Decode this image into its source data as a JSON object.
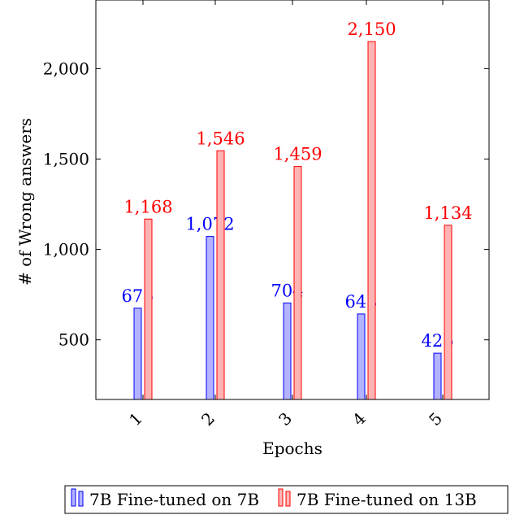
{
  "chart_data": {
    "type": "bar",
    "title": "",
    "xlabel": "Epochs",
    "ylabel": "# of Wrong answers",
    "categories": [
      "1",
      "2",
      "3",
      "4",
      "5"
    ],
    "ylim": [
      170,
      2380
    ],
    "yticks": [
      500,
      1000,
      1500,
      2000
    ],
    "ytick_labels": [
      "500",
      "1,000",
      "1,500",
      "2,000"
    ],
    "grid": false,
    "legend_position": "bottom-center",
    "series": [
      {
        "name": "7B Fine-tuned on 7B",
        "values": [
          675,
          1072,
          704,
          643,
          426
        ],
        "labels": [
          "675",
          "1,072",
          "704",
          "643",
          "426"
        ],
        "color": "#0000ff",
        "fill": "#b3b3ff"
      },
      {
        "name": "7B Fine-tuned on 13B",
        "values": [
          1168,
          1546,
          1459,
          2150,
          1134
        ],
        "labels": [
          "1,168",
          "1,546",
          "1,459",
          "2,150",
          "1,134"
        ],
        "color": "#ff0000",
        "fill": "#ffb3b3"
      }
    ]
  }
}
